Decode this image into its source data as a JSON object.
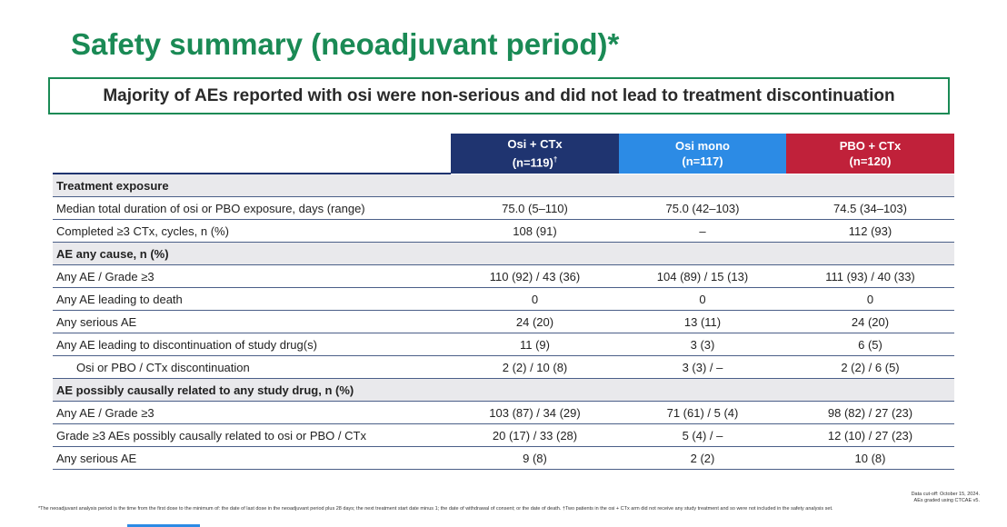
{
  "title": "Safety summary (neoadjuvant period)*",
  "banner": "Majority of AEs reported with osi were non-serious and did not lead to treatment discontinuation",
  "colors": {
    "title": "#1a8a55",
    "osi_ctx": "#1f3470",
    "osi_mono": "#2c8be5",
    "pbo_ctx": "#c0213a",
    "section_bg": "#e9e9ec"
  },
  "table": {
    "headers": [
      {
        "line1": "Osi + CTx",
        "line2": "(n=119)",
        "sup": "†"
      },
      {
        "line1": "Osi mono",
        "line2": "(n=117)",
        "sup": ""
      },
      {
        "line1": "PBO + CTx",
        "line2": "(n=120)",
        "sup": ""
      }
    ],
    "rows": [
      {
        "type": "section",
        "label": "Treatment exposure"
      },
      {
        "type": "data",
        "label": "Median total duration of osi or PBO exposure, days (range)",
        "v": [
          "75.0 (5–110)",
          "75.0 (42–103)",
          "74.5 (34–103)"
        ]
      },
      {
        "type": "data",
        "label": "Completed ≥3 CTx, cycles, n (%)",
        "v": [
          "108 (91)",
          "–",
          "112 (93)"
        ]
      },
      {
        "type": "section",
        "label": "AE any cause, n (%)"
      },
      {
        "type": "data",
        "label": "Any AE / Grade ≥3",
        "v": [
          "110 (92) / 43 (36)",
          "104 (89) / 15 (13)",
          "111 (93) / 40 (33)"
        ]
      },
      {
        "type": "data",
        "label": "Any AE leading to death",
        "v": [
          "0",
          "0",
          "0"
        ]
      },
      {
        "type": "data",
        "label": "Any serious AE",
        "v": [
          "24 (20)",
          "13 (11)",
          "24 (20)"
        ]
      },
      {
        "type": "data",
        "label": "Any AE leading to discontinuation of study drug(s)",
        "v": [
          "11 (9)",
          "3 (3)",
          "6 (5)"
        ]
      },
      {
        "type": "data",
        "indent": true,
        "label": "Osi or PBO / CTx discontinuation",
        "v": [
          "2 (2) / 10 (8)",
          "3 (3) / –",
          "2 (2) / 6 (5)"
        ]
      },
      {
        "type": "section",
        "label": "AE possibly causally related to any study drug, n (%)"
      },
      {
        "type": "data",
        "label": "Any AE / Grade ≥3",
        "v": [
          "103 (87) / 34 (29)",
          "71 (61) / 5 (4)",
          "98 (82) / 27 (23)"
        ]
      },
      {
        "type": "data",
        "label": "Grade ≥3 AEs possibly causally related to osi or PBO / CTx",
        "v": [
          "20 (17) / 33 (28)",
          "5 (4) / –",
          "12 (10) / 27 (23)"
        ]
      },
      {
        "type": "data",
        "label": "Any serious AE",
        "v": [
          "9 (8)",
          "2 (2)",
          "10 (8)"
        ]
      }
    ]
  },
  "cutoff": [
    "Data cut-off: October 15, 2024.",
    "AEs graded using CTCAE v5."
  ],
  "footnote": "*The neoadjuvant analysis period is the time from the first dose to the minimum of: the date of last dose in the neoadjuvant period plus 28 days; the next treatment start date minus 1; the date of withdrawal of consent; or the date of death. †Two patients in the osi + CTx arm did not receive any study treatment and so were not included in the safety analysis set."
}
